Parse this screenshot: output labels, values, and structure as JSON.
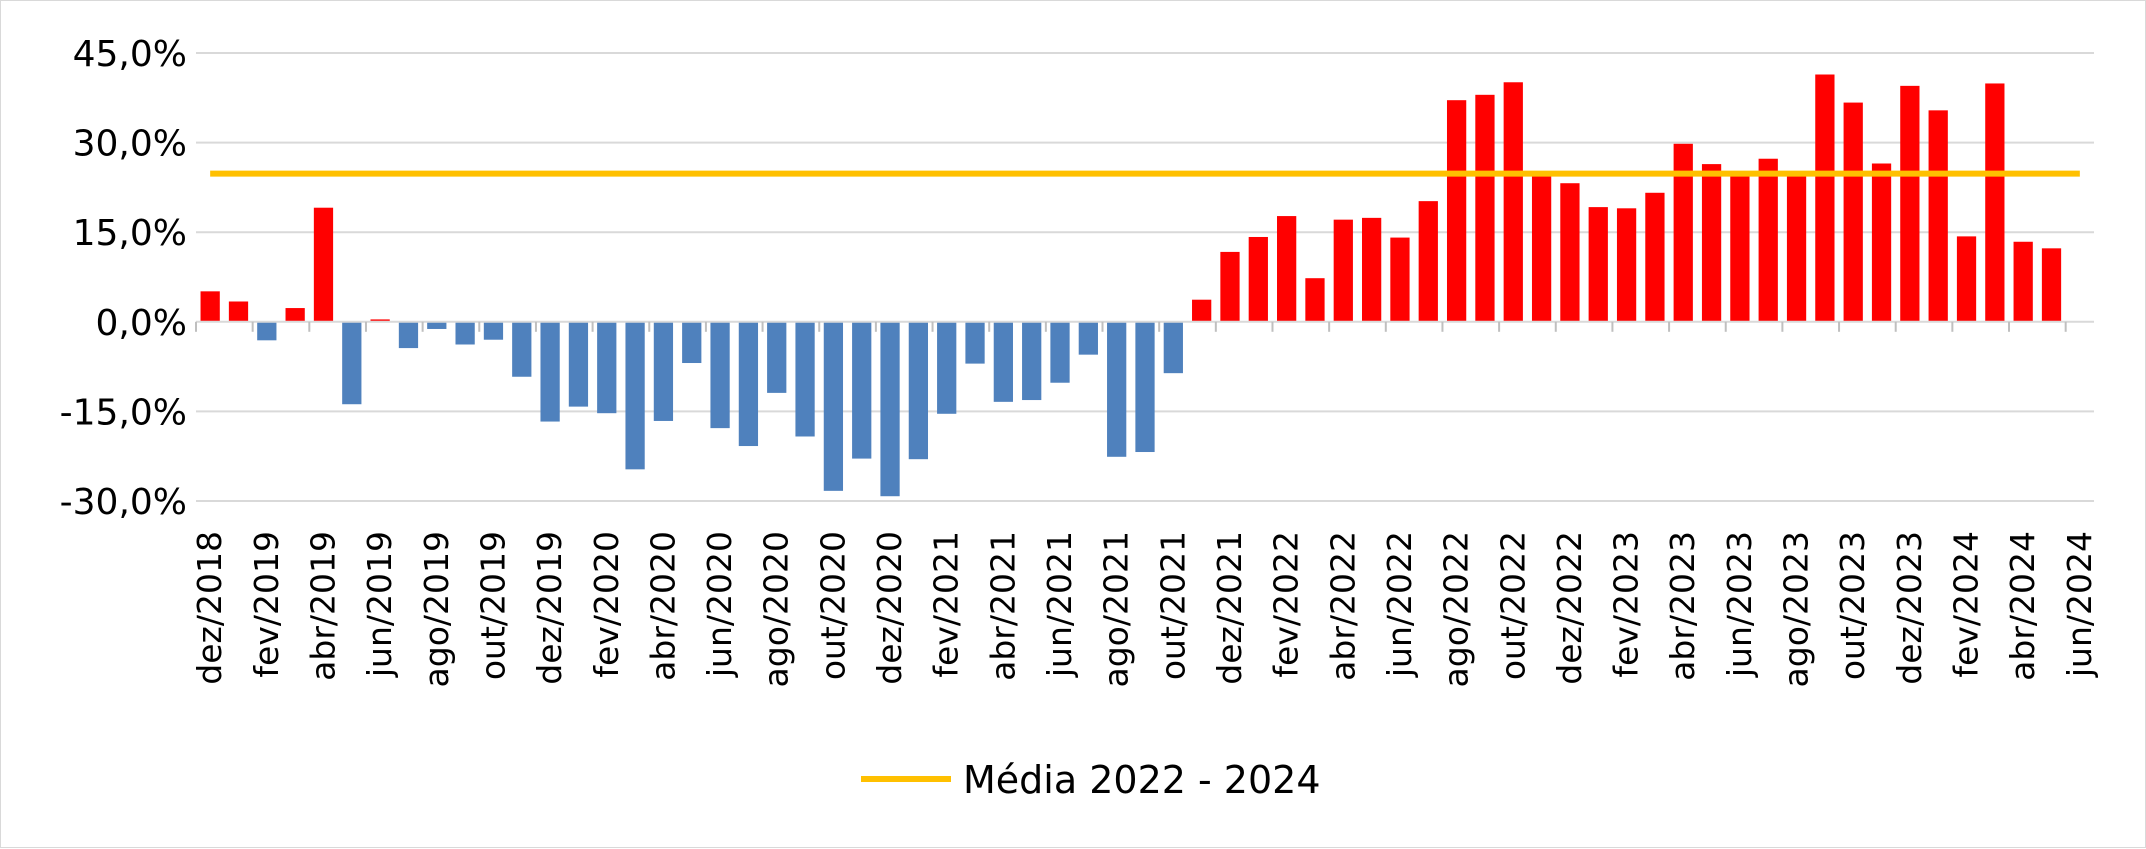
{
  "chart_data": {
    "type": "bar",
    "categories": [
      "dez/2018",
      "jan/2019",
      "fev/2019",
      "mar/2019",
      "abr/2019",
      "mai/2019",
      "jun/2019",
      "jul/2019",
      "ago/2019",
      "set/2019",
      "out/2019",
      "nov/2019",
      "dez/2019",
      "jan/2020",
      "fev/2020",
      "mar/2020",
      "abr/2020",
      "mai/2020",
      "jun/2020",
      "jul/2020",
      "ago/2020",
      "set/2020",
      "out/2020",
      "nov/2020",
      "dez/2020",
      "jan/2021",
      "fev/2021",
      "mar/2021",
      "abr/2021",
      "mai/2021",
      "jun/2021",
      "jul/2021",
      "ago/2021",
      "set/2021",
      "out/2021",
      "nov/2021",
      "dez/2021",
      "jan/2022",
      "fev/2022",
      "mar/2022",
      "abr/2022",
      "mai/2022",
      "jun/2022",
      "jul/2022",
      "ago/2022",
      "set/2022",
      "out/2022",
      "nov/2022",
      "dez/2022",
      "jan/2023",
      "fev/2023",
      "mar/2023",
      "abr/2023",
      "mai/2023",
      "jun/2023",
      "jul/2023",
      "ago/2023",
      "set/2023",
      "out/2023",
      "nov/2023",
      "dez/2023",
      "jan/2024",
      "fev/2024",
      "mar/2024",
      "abr/2024",
      "mai/2024",
      "jun/2024"
    ],
    "x_tick_labels": [
      "dez/2018",
      "fev/2019",
      "abr/2019",
      "jun/2019",
      "ago/2019",
      "out/2019",
      "dez/2019",
      "fev/2020",
      "abr/2020",
      "jun/2020",
      "ago/2020",
      "out/2020",
      "dez/2020",
      "fev/2021",
      "abr/2021",
      "jun/2021",
      "ago/2021",
      "out/2021",
      "dez/2021",
      "fev/2022",
      "abr/2022",
      "jun/2022",
      "ago/2022",
      "out/2022",
      "dez/2022",
      "fev/2023",
      "abr/2023",
      "jun/2023",
      "ago/2023",
      "out/2023",
      "dez/2023",
      "fev/2024",
      "abr/2024",
      "jun/2024"
    ],
    "values": [
      5.1,
      3.4,
      -3.1,
      2.3,
      19.1,
      -13.8,
      0.4,
      -4.4,
      -1.2,
      -3.8,
      -3.0,
      -9.2,
      -16.7,
      -14.2,
      -15.3,
      -24.7,
      -16.6,
      -6.9,
      -17.8,
      -20.8,
      -11.9,
      -19.2,
      -28.3,
      -22.9,
      -29.2,
      -23.0,
      -15.4,
      -7.0,
      -13.4,
      -13.1,
      -10.2,
      -5.5,
      -22.6,
      -21.8,
      -8.6,
      3.7,
      11.7,
      14.2,
      17.7,
      7.3,
      17.1,
      17.4,
      14.1,
      20.2,
      37.1,
      38.0,
      40.1,
      24.5,
      23.2,
      19.2,
      19.0,
      21.6,
      29.8,
      26.4,
      24.7,
      27.3,
      24.4,
      41.4,
      36.7,
      26.5,
      39.5,
      35.4,
      14.3,
      39.9,
      13.4,
      12.3,
      0
    ],
    "positive_color": "#ff0000",
    "negative_color": "#4f81bd",
    "reference_line": {
      "name": "Média 2022 - 2024",
      "value": 24.8,
      "color": "#ffc000"
    },
    "y_tick_labels": [
      "45,0%",
      "30,0%",
      "15,0%",
      "0,0%",
      "-15,0%",
      "-30,0%"
    ],
    "y_tick_values": [
      45,
      30,
      15,
      0,
      -15,
      -30
    ],
    "ylim": [
      -30,
      45
    ],
    "grid": true,
    "legend_position": "bottom",
    "title": "",
    "xlabel": "",
    "ylabel": ""
  }
}
